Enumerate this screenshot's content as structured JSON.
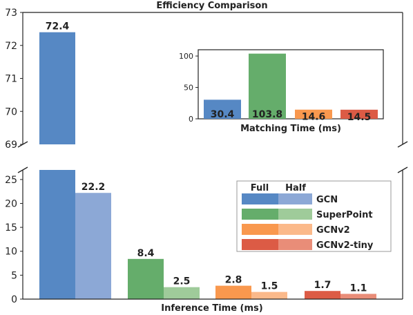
{
  "chart_data": [
    {
      "type": "bar",
      "title": "Efficiency Comparison",
      "xlabel": "Inference Time (ms)",
      "ylabel": "",
      "broken_y_axis": true,
      "ylim_lower": [
        0,
        27
      ],
      "ylim_upper": [
        69,
        73
      ],
      "yticks_lower": [
        "0",
        "5",
        "10",
        "15",
        "20",
        "25"
      ],
      "yticks_upper": [
        "69",
        "70",
        "71",
        "72",
        "73"
      ],
      "variants": [
        "Full",
        "Half"
      ],
      "series": [
        {
          "name": "GCN",
          "full": 72.4,
          "half": 22.2,
          "full_label": "72.4",
          "half_label": "22.2",
          "color_full": "#5688c4",
          "color_half": "#8ca8d6"
        },
        {
          "name": "SuperPoint",
          "full": 8.4,
          "half": 2.5,
          "full_label": "8.4",
          "half_label": "2.5",
          "color_full": "#65ad6b",
          "color_half": "#9fcb9a"
        },
        {
          "name": "GCNv2",
          "full": 2.8,
          "half": 1.5,
          "full_label": "2.8",
          "half_label": "1.5",
          "color_full": "#f9984e",
          "color_half": "#fbb98a"
        },
        {
          "name": "GCNv2-tiny",
          "full": 1.7,
          "half": 1.1,
          "full_label": "1.7",
          "half_label": "1.1",
          "color_full": "#dc5b45",
          "color_half": "#e98d78"
        }
      ],
      "legend": {
        "placement": "right",
        "header_full": "Full",
        "header_half": "Half",
        "entries": [
          "GCN",
          "SuperPoint",
          "GCNv2",
          "GCNv2-tiny"
        ]
      }
    },
    {
      "type": "bar",
      "xlabel": "Matching Time (ms)",
      "ylim": [
        0,
        110
      ],
      "yticks": [
        "0",
        "50",
        "100"
      ],
      "categories": [
        "GCN",
        "SuperPoint",
        "GCNv2",
        "GCNv2-tiny"
      ],
      "values": [
        30.4,
        103.8,
        14.6,
        14.5
      ],
      "value_labels": [
        "30.4",
        "103.8",
        "14.6",
        "14.5"
      ],
      "colors": [
        "#5688c4",
        "#65ad6b",
        "#f9984e",
        "#dc5b45"
      ]
    }
  ]
}
